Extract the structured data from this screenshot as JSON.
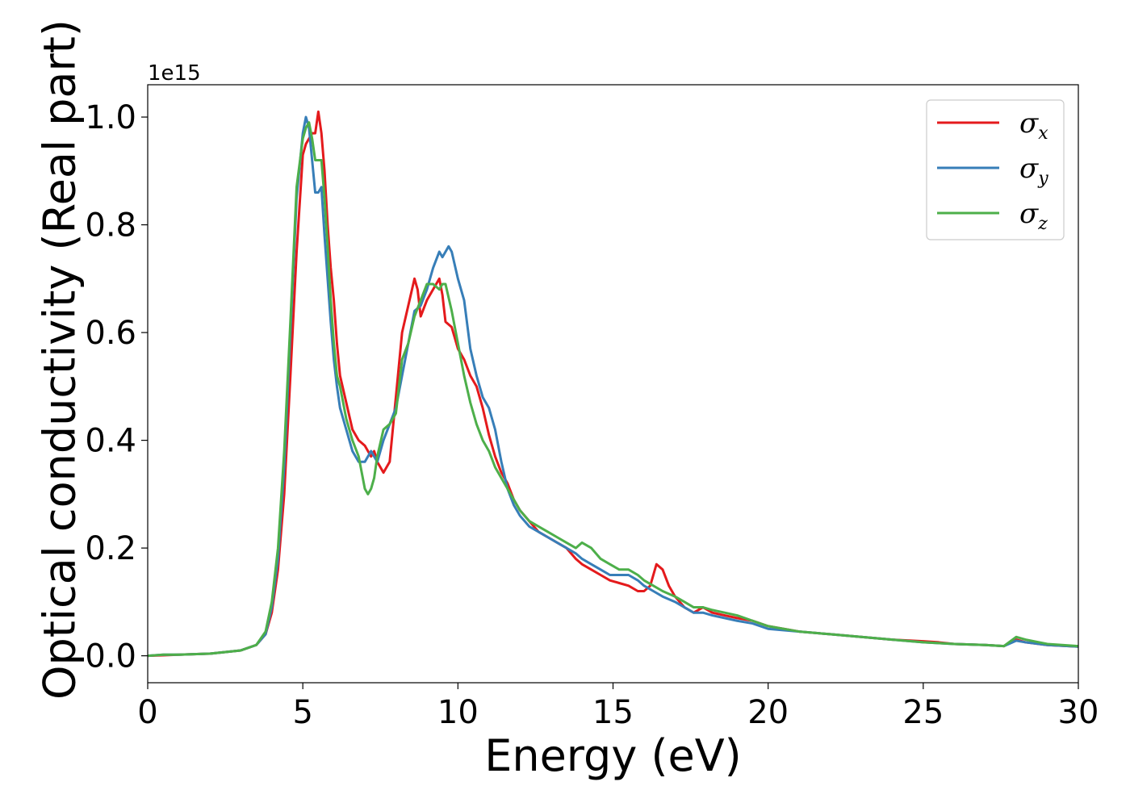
{
  "chart_data": {
    "type": "line",
    "xlabel": "Energy (eV)",
    "ylabel": "Optical conductivity (Real part)",
    "y_offset_label": "1e15",
    "xlim": [
      0,
      30
    ],
    "ylim": [
      -0.05,
      1.06
    ],
    "x_ticks": [
      0,
      5,
      10,
      15,
      20,
      25,
      30
    ],
    "x_tick_labels": [
      "0",
      "5",
      "10",
      "15",
      "20",
      "25",
      "30"
    ],
    "y_ticks": [
      0.0,
      0.2,
      0.4,
      0.6,
      0.8,
      1.0
    ],
    "y_tick_labels": [
      "0.0",
      "0.2",
      "0.4",
      "0.6",
      "0.8",
      "1.0"
    ],
    "grid": false,
    "legend_position": "top-right",
    "series": [
      {
        "name": "σ",
        "subscript": "x",
        "color": "#e41a1c",
        "x": [
          0,
          0.5,
          1,
          2,
          3,
          3.5,
          3.8,
          4.0,
          4.2,
          4.4,
          4.6,
          4.8,
          5.0,
          5.1,
          5.2,
          5.3,
          5.4,
          5.5,
          5.6,
          5.7,
          5.8,
          5.9,
          6.0,
          6.1,
          6.2,
          6.4,
          6.6,
          6.8,
          7.0,
          7.1,
          7.2,
          7.3,
          7.4,
          7.6,
          7.8,
          8.0,
          8.2,
          8.4,
          8.6,
          8.7,
          8.8,
          9.0,
          9.2,
          9.4,
          9.5,
          9.6,
          9.8,
          10.0,
          10.2,
          10.4,
          10.6,
          10.8,
          11.0,
          11.2,
          11.4,
          11.6,
          11.8,
          12.0,
          12.3,
          12.6,
          12.9,
          13.2,
          13.5,
          13.8,
          14.0,
          14.3,
          14.6,
          14.9,
          15.2,
          15.5,
          15.8,
          16.0,
          16.2,
          16.4,
          16.6,
          16.8,
          17.0,
          17.3,
          17.6,
          17.9,
          18.2,
          18.6,
          19.0,
          19.5,
          20.0,
          21.0,
          22.0,
          23.0,
          24.0,
          25.0,
          25.5,
          26.0,
          27.0,
          27.6,
          28.0,
          28.3,
          29.0,
          30.0
        ],
        "y": [
          0.0,
          0.001,
          0.002,
          0.004,
          0.01,
          0.02,
          0.04,
          0.08,
          0.16,
          0.3,
          0.52,
          0.75,
          0.93,
          0.95,
          0.96,
          0.97,
          0.97,
          1.01,
          0.97,
          0.9,
          0.8,
          0.72,
          0.66,
          0.58,
          0.52,
          0.47,
          0.42,
          0.4,
          0.39,
          0.38,
          0.37,
          0.38,
          0.36,
          0.34,
          0.36,
          0.48,
          0.6,
          0.65,
          0.7,
          0.68,
          0.63,
          0.66,
          0.68,
          0.7,
          0.67,
          0.62,
          0.61,
          0.57,
          0.55,
          0.52,
          0.5,
          0.46,
          0.41,
          0.37,
          0.34,
          0.32,
          0.29,
          0.27,
          0.25,
          0.23,
          0.22,
          0.21,
          0.2,
          0.18,
          0.17,
          0.16,
          0.15,
          0.14,
          0.135,
          0.13,
          0.12,
          0.12,
          0.13,
          0.17,
          0.16,
          0.13,
          0.11,
          0.09,
          0.08,
          0.09,
          0.08,
          0.075,
          0.07,
          0.065,
          0.055,
          0.045,
          0.04,
          0.035,
          0.03,
          0.027,
          0.025,
          0.022,
          0.02,
          0.018,
          0.03,
          0.025,
          0.02,
          0.017
        ]
      },
      {
        "name": "σ",
        "subscript": "y",
        "color": "#377eb8",
        "x": [
          0,
          0.5,
          1,
          2,
          3,
          3.5,
          3.8,
          4.0,
          4.2,
          4.4,
          4.6,
          4.8,
          5.0,
          5.1,
          5.2,
          5.3,
          5.4,
          5.5,
          5.6,
          5.7,
          5.8,
          5.9,
          6.0,
          6.1,
          6.2,
          6.4,
          6.6,
          6.8,
          7.0,
          7.1,
          7.2,
          7.3,
          7.4,
          7.6,
          7.8,
          8.0,
          8.2,
          8.4,
          8.6,
          8.8,
          9.0,
          9.2,
          9.4,
          9.5,
          9.6,
          9.7,
          9.8,
          10.0,
          10.2,
          10.4,
          10.6,
          10.8,
          11.0,
          11.2,
          11.4,
          11.6,
          11.8,
          12.0,
          12.3,
          12.6,
          12.9,
          13.2,
          13.5,
          13.8,
          14.0,
          14.3,
          14.6,
          14.9,
          15.2,
          15.5,
          15.8,
          16.0,
          16.3,
          16.6,
          17.0,
          17.3,
          17.6,
          17.9,
          18.2,
          18.6,
          19.0,
          19.5,
          20.0,
          21.0,
          22.0,
          23.0,
          24.0,
          25.0,
          26.0,
          27.0,
          27.6,
          28.0,
          28.3,
          29.0,
          30.0
        ],
        "y": [
          0.0,
          0.002,
          0.002,
          0.004,
          0.01,
          0.02,
          0.04,
          0.09,
          0.18,
          0.35,
          0.6,
          0.85,
          0.97,
          1.0,
          0.98,
          0.92,
          0.86,
          0.86,
          0.87,
          0.78,
          0.7,
          0.62,
          0.55,
          0.5,
          0.46,
          0.42,
          0.38,
          0.36,
          0.36,
          0.37,
          0.38,
          0.37,
          0.36,
          0.4,
          0.43,
          0.46,
          0.52,
          0.58,
          0.64,
          0.65,
          0.68,
          0.72,
          0.75,
          0.74,
          0.75,
          0.76,
          0.75,
          0.7,
          0.66,
          0.57,
          0.52,
          0.48,
          0.46,
          0.42,
          0.36,
          0.31,
          0.28,
          0.26,
          0.24,
          0.23,
          0.22,
          0.21,
          0.2,
          0.19,
          0.18,
          0.17,
          0.16,
          0.15,
          0.15,
          0.15,
          0.14,
          0.13,
          0.12,
          0.11,
          0.1,
          0.09,
          0.08,
          0.08,
          0.075,
          0.07,
          0.065,
          0.06,
          0.05,
          0.045,
          0.04,
          0.035,
          0.03,
          0.025,
          0.022,
          0.02,
          0.018,
          0.028,
          0.025,
          0.02,
          0.017
        ]
      },
      {
        "name": "σ",
        "subscript": "z",
        "color": "#4daf4a",
        "x": [
          0,
          0.5,
          1,
          2,
          3,
          3.5,
          3.8,
          4.0,
          4.2,
          4.4,
          4.6,
          4.8,
          5.0,
          5.1,
          5.2,
          5.3,
          5.4,
          5.5,
          5.6,
          5.7,
          5.8,
          5.9,
          6.0,
          6.1,
          6.2,
          6.4,
          6.6,
          6.8,
          7.0,
          7.1,
          7.2,
          7.3,
          7.4,
          7.6,
          7.8,
          8.0,
          8.2,
          8.4,
          8.6,
          8.8,
          9.0,
          9.2,
          9.4,
          9.5,
          9.6,
          9.8,
          10.0,
          10.2,
          10.4,
          10.6,
          10.8,
          11.0,
          11.2,
          11.4,
          11.6,
          11.8,
          12.0,
          12.3,
          12.6,
          12.9,
          13.2,
          13.5,
          13.8,
          14.0,
          14.3,
          14.6,
          14.9,
          15.2,
          15.5,
          15.8,
          16.0,
          16.3,
          16.6,
          17.0,
          17.3,
          17.6,
          17.9,
          18.2,
          18.6,
          19.0,
          19.5,
          20.0,
          21.0,
          22.0,
          23.0,
          24.0,
          25.0,
          26.0,
          27.0,
          27.6,
          28.0,
          28.3,
          29.0,
          30.0
        ],
        "y": [
          0.0,
          0.002,
          0.002,
          0.004,
          0.01,
          0.02,
          0.045,
          0.1,
          0.2,
          0.38,
          0.62,
          0.87,
          0.96,
          0.98,
          0.99,
          0.96,
          0.92,
          0.92,
          0.92,
          0.85,
          0.76,
          0.66,
          0.58,
          0.52,
          0.5,
          0.44,
          0.4,
          0.37,
          0.31,
          0.3,
          0.31,
          0.33,
          0.37,
          0.42,
          0.43,
          0.45,
          0.55,
          0.58,
          0.63,
          0.66,
          0.69,
          0.69,
          0.68,
          0.69,
          0.69,
          0.64,
          0.58,
          0.52,
          0.47,
          0.43,
          0.4,
          0.38,
          0.35,
          0.33,
          0.31,
          0.29,
          0.27,
          0.25,
          0.24,
          0.23,
          0.22,
          0.21,
          0.2,
          0.21,
          0.2,
          0.18,
          0.17,
          0.16,
          0.16,
          0.15,
          0.14,
          0.13,
          0.12,
          0.11,
          0.1,
          0.09,
          0.09,
          0.085,
          0.08,
          0.075,
          0.065,
          0.055,
          0.045,
          0.04,
          0.035,
          0.03,
          0.025,
          0.022,
          0.02,
          0.018,
          0.035,
          0.03,
          0.022,
          0.018
        ]
      }
    ]
  }
}
